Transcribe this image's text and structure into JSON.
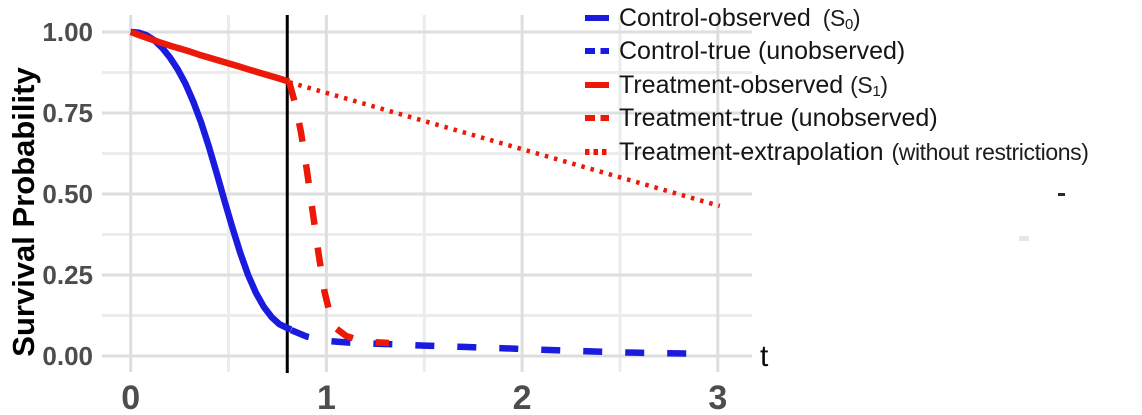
{
  "colors": {
    "control_blue": "#1b1be0",
    "treatment_red": "#ec1808",
    "reference_line": "#000000",
    "grid_major": "#dedede",
    "grid_minor": "#ececec",
    "axis_tick_text": "#4d4d4d",
    "axis_title_text": "#000000"
  },
  "legend": {
    "items": [
      {
        "label": "Control-observed",
        "pre_sub": "(S",
        "sub": "0",
        "post_sub": ")",
        "suffix": "",
        "color": "#1b1be0",
        "style": "solid"
      },
      {
        "label": "Control-true (unobserved)",
        "pre_sub": "",
        "sub": "",
        "post_sub": "",
        "suffix": "",
        "color": "#1b1be0",
        "style": "dashed"
      },
      {
        "label": "Treatment-observed",
        "pre_sub": "(S",
        "sub": "1",
        "post_sub": ")",
        "suffix": "",
        "color": "#ec1808",
        "style": "solid"
      },
      {
        "label": "Treatment-true (unobserved)",
        "pre_sub": "",
        "sub": "",
        "post_sub": "",
        "suffix": "",
        "color": "#ec1808",
        "style": "dashed"
      },
      {
        "label": "Treatment-extrapolation",
        "pre_sub": "",
        "sub": "",
        "post_sub": "",
        "suffix": "(without restrictions)",
        "color": "#ec1808",
        "style": "dotted"
      }
    ]
  },
  "chart_data": {
    "type": "line",
    "title": "",
    "xlabel": "t",
    "ylabel": "Survival Probability",
    "xlim": [
      -0.15,
      3.17
    ],
    "ylim": [
      -0.05,
      1.05
    ],
    "x_ticks": [
      0,
      1,
      2,
      3
    ],
    "x_tick_labels": [
      "0",
      "1",
      "2",
      "3"
    ],
    "x_minor": [
      0.5,
      1.5,
      2.5
    ],
    "y_ticks": [
      0,
      0.25,
      0.5,
      0.75,
      1.0
    ],
    "y_tick_labels": [
      "0.00",
      "0.25",
      "0.50",
      "0.75",
      "1.00"
    ],
    "y_minor": [
      0.125,
      0.375,
      0.625,
      0.875
    ],
    "grid": "major+minor",
    "legend_position": "top-right-inside",
    "reference_line": {
      "type": "vertical",
      "x": 0.8,
      "color": "#000000"
    },
    "series": [
      {
        "name": "Control-observed (S0)",
        "color": "#1b1be0",
        "linestyle": "solid",
        "t": [
          0,
          0.04,
          0.08,
          0.12,
          0.16,
          0.2,
          0.24,
          0.28,
          0.32,
          0.36,
          0.4,
          0.44,
          0.48,
          0.52,
          0.56,
          0.6,
          0.64,
          0.68,
          0.72,
          0.76,
          0.8,
          0.82
        ],
        "S": [
          1.0,
          0.998,
          0.99,
          0.975,
          0.952,
          0.922,
          0.885,
          0.84,
          0.785,
          0.72,
          0.645,
          0.563,
          0.478,
          0.395,
          0.318,
          0.25,
          0.195,
          0.152,
          0.12,
          0.098,
          0.086,
          0.082
        ]
      },
      {
        "name": "Control-true (unobserved)",
        "color": "#1b1be0",
        "linestyle": "dashed",
        "t": [
          0.82,
          0.9,
          1.0,
          1.1,
          1.2,
          1.35,
          1.5,
          1.7,
          1.9,
          2.1,
          2.3,
          2.5,
          2.7,
          2.92
        ],
        "S": [
          0.08,
          0.06,
          0.047,
          0.042,
          0.039,
          0.036,
          0.032,
          0.028,
          0.024,
          0.019,
          0.015,
          0.011,
          0.009,
          0.007
        ]
      },
      {
        "name": "Treatment-observed (S1)",
        "color": "#ec1808",
        "linestyle": "solid",
        "t": [
          0,
          0.05,
          0.1,
          0.15,
          0.2,
          0.25,
          0.3,
          0.35,
          0.4,
          0.45,
          0.5,
          0.55,
          0.6,
          0.65,
          0.7,
          0.75,
          0.81
        ],
        "S": [
          1.0,
          0.989,
          0.978,
          0.968,
          0.958,
          0.949,
          0.94,
          0.93,
          0.921,
          0.912,
          0.903,
          0.894,
          0.885,
          0.876,
          0.867,
          0.858,
          0.847
        ]
      },
      {
        "name": "Treatment-true (unobserved)",
        "color": "#ec1808",
        "linestyle": "dashed",
        "t": [
          0.81,
          0.84,
          0.87,
          0.9,
          0.93,
          0.96,
          0.99,
          1.02,
          1.05,
          1.1,
          1.16,
          1.24,
          1.32
        ],
        "S": [
          0.845,
          0.78,
          0.69,
          0.575,
          0.445,
          0.315,
          0.2,
          0.125,
          0.085,
          0.062,
          0.05,
          0.043,
          0.04
        ]
      },
      {
        "name": "Treatment-extrapolation (without restrictions)",
        "color": "#ec1808",
        "linestyle": "dotted",
        "t": [
          0.81,
          3.01
        ],
        "S": [
          0.845,
          0.463
        ]
      }
    ]
  }
}
